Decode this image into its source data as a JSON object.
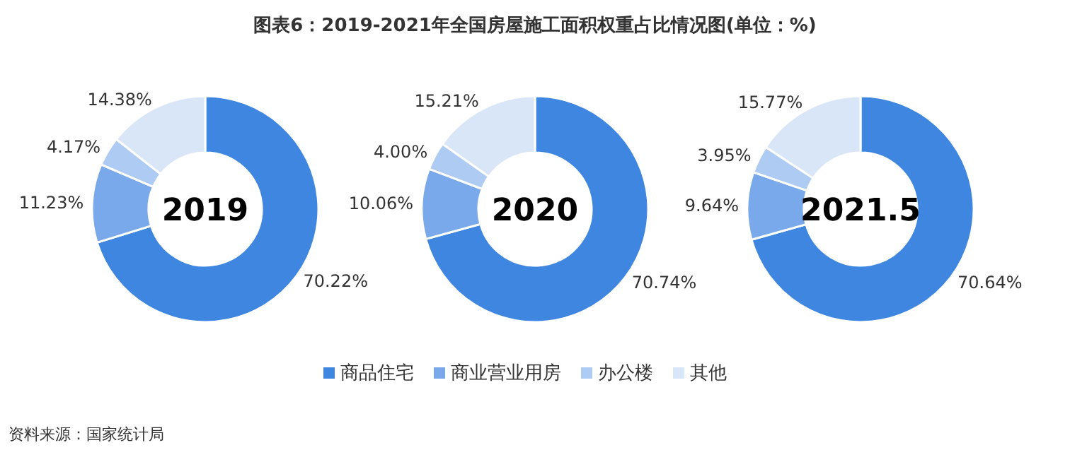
{
  "chart_data": [
    {
      "type": "donut",
      "title": "图表6：2019-2021年全国房屋施工面积权重占比情况图(单位：%)",
      "subtitle": "2019",
      "categories": [
        null,
        null,
        null,
        null
      ],
      "values": [
        70.22,
        11.23,
        4.17,
        14.38
      ],
      "value_labels": [
        "70.22%",
        "11.23%",
        "4.17%",
        "14.38%"
      ],
      "colors": [
        "#3f86e0",
        "#79a9ea",
        "#aecbf3",
        "#d9e6f8"
      ],
      "annotations": [
        "资料来源：国家统计局"
      ]
    },
    {
      "type": "donut",
      "subtitle": "2020",
      "categories": [
        "商品住宅",
        "商业营业用房",
        "办公楼",
        "其他"
      ],
      "values": [
        70.74,
        10.06,
        4.0,
        15.21
      ],
      "value_labels": [
        "70.74%",
        "10.06%",
        "4.00%",
        "15.21%"
      ],
      "colors": [
        "#3f86e0",
        "#79a9ea",
        "#aecbf3",
        "#d9e6f8"
      ],
      "legend": "bottom"
    },
    {
      "type": "donut",
      "subtitle": "2021.5",
      "categories": [
        null,
        null,
        null,
        null
      ],
      "values": [
        70.64,
        9.64,
        3.95,
        15.77
      ],
      "value_labels": [
        "70.64%",
        "9.64%",
        "3.95%",
        "15.77%"
      ],
      "colors": [
        "#3f86e0",
        "#79a9ea",
        "#aecbf3",
        "#d9e6f8"
      ]
    }
  ]
}
